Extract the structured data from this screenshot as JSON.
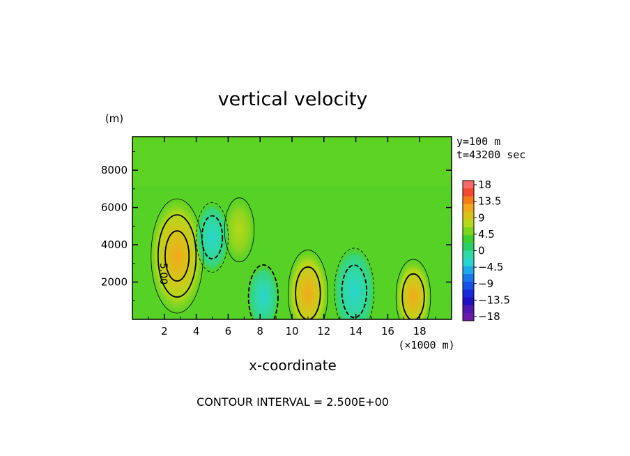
{
  "chart_data": {
    "type": "heatmap",
    "title": "vertical velocity",
    "xlabel": "x-coordinate",
    "x_unit": "(×1000 m)",
    "y_unit": "(m)",
    "annotation_lines": [
      "y=100 m",
      "t=43200 sec"
    ],
    "footer": "CONTOUR INTERVAL = 2.500E+00",
    "contour_label": "5.00",
    "x_range": [
      0,
      20
    ],
    "y_range": [
      0,
      9800
    ],
    "x_ticks": [
      2,
      4,
      6,
      8,
      10,
      12,
      14,
      16,
      18
    ],
    "y_ticks": [
      2000,
      4000,
      6000,
      8000
    ],
    "x_tick_labels": [
      "2",
      "4",
      "6",
      "8",
      "10",
      "12",
      "14",
      "16",
      "18"
    ],
    "y_tick_labels": [
      "2000",
      "4000",
      "6000",
      "8000"
    ],
    "colorbar": {
      "labels": [
        "18",
        "13.5",
        "9",
        "4.5",
        "0",
        "−4.5",
        "−9",
        "−13.5",
        "−18"
      ],
      "colors": [
        "#f86a6a",
        "#f24a30",
        "#f57a18",
        "#f3a81a",
        "#d8c21a",
        "#b4d81a",
        "#7bd41f",
        "#3dcf2d",
        "#29cf66",
        "#2fd8a4",
        "#28d4cf",
        "#1fa8e8",
        "#1a78ee",
        "#1650e8",
        "#1a2ad8",
        "#2010c0",
        "#5018b0",
        "#6a1aa8"
      ]
    },
    "features": [
      {
        "kind": "updraft",
        "x": 2.8,
        "y": 3400,
        "peak": 6.5
      },
      {
        "kind": "updraft",
        "x": 11.0,
        "y": 1400,
        "peak": 4.0
      },
      {
        "kind": "updraft",
        "x": 17.6,
        "y": 1200,
        "peak": 3.0
      },
      {
        "kind": "updraft",
        "x": 6.7,
        "y": 4800,
        "peak": 2.0
      },
      {
        "kind": "downdraft",
        "x": 13.9,
        "y": 1500,
        "peak": -4.0
      },
      {
        "kind": "downdraft",
        "x": 5.0,
        "y": 4400,
        "peak": -2.5
      },
      {
        "kind": "downdraft",
        "x": 8.2,
        "y": 1200,
        "peak": -2.0
      }
    ]
  }
}
